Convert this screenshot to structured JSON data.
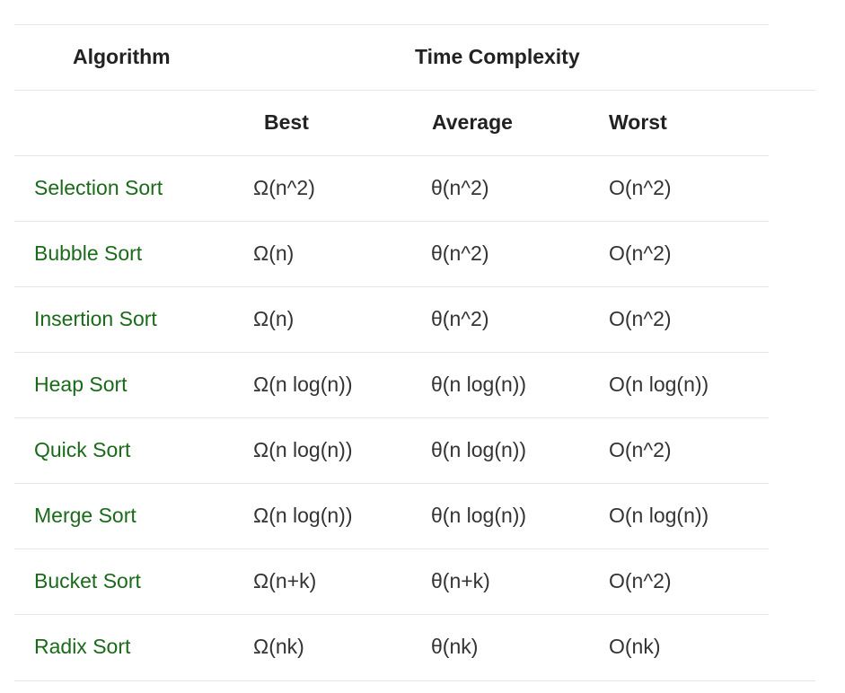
{
  "header": {
    "algorithm": "Algorithm",
    "time_complexity": "Time Complexity",
    "best": "Best",
    "average": "Average",
    "worst": "Worst"
  },
  "rows": [
    {
      "name": "Selection Sort",
      "best": "Ω(n^2)",
      "average": "θ(n^2)",
      "worst": "O(n^2)"
    },
    {
      "name": "Bubble Sort",
      "best": "Ω(n)",
      "average": "θ(n^2)",
      "worst": "O(n^2)"
    },
    {
      "name": "Insertion Sort",
      "best": "Ω(n)",
      "average": "θ(n^2)",
      "worst": "O(n^2)"
    },
    {
      "name": "Heap Sort",
      "best": "Ω(n log(n))",
      "average": "θ(n log(n))",
      "worst": "O(n log(n))"
    },
    {
      "name": "Quick Sort",
      "best": "Ω(n log(n))",
      "average": "θ(n log(n))",
      "worst": "O(n^2)"
    },
    {
      "name": "Merge Sort",
      "best": "Ω(n log(n))",
      "average": "θ(n log(n))",
      "worst": "O(n log(n))"
    },
    {
      "name": "Bucket Sort",
      "best": "Ω(n+k)",
      "average": "θ(n+k)",
      "worst": "O(n^2)"
    },
    {
      "name": "Radix Sort",
      "best": "Ω(nk)",
      "average": "θ(nk)",
      "worst": "O(nk)"
    }
  ],
  "colors": {
    "link": "#1a6a1a",
    "border": "#e6e6e6",
    "text": "#222222"
  }
}
